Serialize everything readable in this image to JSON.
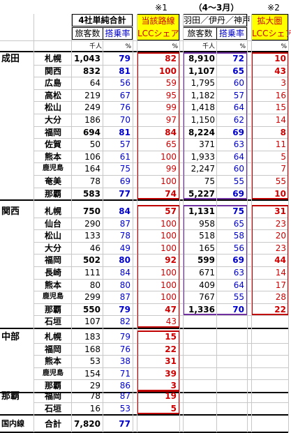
{
  "header": {
    "note1": "※1",
    "note2": "※2",
    "company_total": "4社単純合計",
    "route_lcc": "当該路線",
    "period": "（4～3月）",
    "expanded": "拡大圏",
    "passengers": "旅客数",
    "load_factor": "搭乗率",
    "lcc_share": "LCCシェア",
    "airports": "羽田／伊丹／神戸",
    "passengers2": "旅客数",
    "load_factor2": "搭乗率",
    "lcc_share2": "LCCシェア",
    "unit_thousand": "千人",
    "unit_pct": "%",
    "unit_pct2": "%",
    "unit_thousand2": "千人",
    "unit_pct3": "%",
    "unit_pct4": "%"
  },
  "groups": [
    {
      "name": "成田",
      "rows": [
        {
          "city": "札幌",
          "pax": "1,043",
          "lf": "79",
          "share": "82",
          "pax2": "8,910",
          "lf2": "72",
          "share2": "10",
          "bold": true
        },
        {
          "city": "関西",
          "pax": "832",
          "lf": "81",
          "share": "100",
          "pax2": "1,107",
          "lf2": "65",
          "share2": "43",
          "bold": true
        },
        {
          "city": "広島",
          "pax": "64",
          "lf": "56",
          "share": "59",
          "pax2": "1,795",
          "lf2": "60",
          "share2": "3",
          "bold": false
        },
        {
          "city": "高松",
          "pax": "219",
          "lf": "67",
          "share": "95",
          "pax2": "1,182",
          "lf2": "57",
          "share2": "16",
          "bold": false
        },
        {
          "city": "松山",
          "pax": "249",
          "lf": "76",
          "share": "99",
          "pax2": "1,418",
          "lf2": "64",
          "share2": "15",
          "bold": false
        },
        {
          "city": "大分",
          "pax": "186",
          "lf": "70",
          "share": "97",
          "pax2": "1,150",
          "lf2": "62",
          "share2": "14",
          "bold": false
        },
        {
          "city": "福岡",
          "pax": "694",
          "lf": "81",
          "share": "84",
          "pax2": "8,224",
          "lf2": "69",
          "share2": "8",
          "bold": true
        },
        {
          "city": "佐賀",
          "pax": "50",
          "lf": "57",
          "share": "65",
          "pax2": "371",
          "lf2": "63",
          "share2": "11",
          "bold": false
        },
        {
          "city": "熊本",
          "pax": "106",
          "lf": "61",
          "share": "100",
          "pax2": "1,933",
          "lf2": "64",
          "share2": "5",
          "bold": false
        },
        {
          "city": "鹿児島",
          "pax": "164",
          "lf": "75",
          "share": "99",
          "pax2": "2,247",
          "lf2": "60",
          "share2": "7",
          "bold": false
        },
        {
          "city": "奄美",
          "pax": "78",
          "lf": "69",
          "share": "100",
          "pax2": "75",
          "lf2": "55",
          "share2": "55",
          "bold": false
        },
        {
          "city": "那覇",
          "pax": "583",
          "lf": "77",
          "share": "74",
          "pax2": "5,227",
          "lf2": "69",
          "share2": "10",
          "bold": true
        }
      ]
    },
    {
      "name": "関西",
      "rows": [
        {
          "city": "札幌",
          "pax": "750",
          "lf": "84",
          "share": "57",
          "pax2": "1,131",
          "lf2": "75",
          "share2": "31",
          "bold": true
        },
        {
          "city": "仙台",
          "pax": "290",
          "lf": "87",
          "share": "100",
          "pax2": "958",
          "lf2": "65",
          "share2": "23",
          "bold": false
        },
        {
          "city": "松山",
          "pax": "133",
          "lf": "78",
          "share": "100",
          "pax2": "518",
          "lf2": "58",
          "share2": "20",
          "bold": false
        },
        {
          "city": "大分",
          "pax": "46",
          "lf": "49",
          "share": "100",
          "pax2": "165",
          "lf2": "56",
          "share2": "23",
          "bold": false
        },
        {
          "city": "福岡",
          "pax": "502",
          "lf": "80",
          "share": "92",
          "pax2": "599",
          "lf2": "69",
          "share2": "44",
          "bold": true
        },
        {
          "city": "長崎",
          "pax": "111",
          "lf": "84",
          "share": "100",
          "pax2": "671",
          "lf2": "63",
          "share2": "14",
          "bold": false
        },
        {
          "city": "熊本",
          "pax": "80",
          "lf": "80",
          "share": "100",
          "pax2": "409",
          "lf2": "64",
          "share2": "17",
          "bold": false
        },
        {
          "city": "鹿児島",
          "pax": "299",
          "lf": "87",
          "share": "100",
          "pax2": "767",
          "lf2": "55",
          "share2": "28",
          "bold": false
        },
        {
          "city": "那覇",
          "pax": "550",
          "lf": "79",
          "share": "47",
          "pax2": "1,336",
          "lf2": "70",
          "share2": "22",
          "bold": true
        },
        {
          "city": "石垣",
          "pax": "107",
          "lf": "82",
          "share": "43",
          "pax2": "",
          "lf2": "",
          "share2": "",
          "bold": false
        }
      ]
    },
    {
      "name": "中部",
      "rows": [
        {
          "city": "札幌",
          "pax": "183",
          "lf": "79",
          "share": "15",
          "pax2": "",
          "lf2": "",
          "share2": "",
          "bold": false
        },
        {
          "city": "福岡",
          "pax": "168",
          "lf": "76",
          "share": "22",
          "pax2": "",
          "lf2": "",
          "share2": "",
          "bold": false
        },
        {
          "city": "熊本",
          "pax": "53",
          "lf": "38",
          "share": "31",
          "pax2": "",
          "lf2": "",
          "share2": "",
          "bold": false
        },
        {
          "city": "鹿児島",
          "pax": "154",
          "lf": "71",
          "share": "39",
          "pax2": "",
          "lf2": "",
          "share2": "",
          "bold": false
        },
        {
          "city": "那覇",
          "pax": "29",
          "lf": "86",
          "share": "3",
          "pax2": "",
          "lf2": "",
          "share2": "",
          "bold": false
        }
      ]
    },
    {
      "name": "那覇",
      "rows": [
        {
          "city": "福岡",
          "pax": "78",
          "lf": "87",
          "share": "19",
          "pax2": "",
          "lf2": "",
          "share2": "",
          "bold": false
        },
        {
          "city": "石垣",
          "pax": "16",
          "lf": "53",
          "share": "5",
          "pax2": "",
          "lf2": "",
          "share2": "",
          "bold": false
        }
      ]
    }
  ],
  "total": {
    "label": "国内線",
    "sublabel": "合計",
    "pax": "7,820",
    "lf": "77"
  },
  "colors": {
    "blue": "#0000cc",
    "red": "#cc0000",
    "purple": "#7030a0",
    "dark_red": "#c00000",
    "yellow": "#ffff00",
    "grid": "#c8c8c8"
  }
}
